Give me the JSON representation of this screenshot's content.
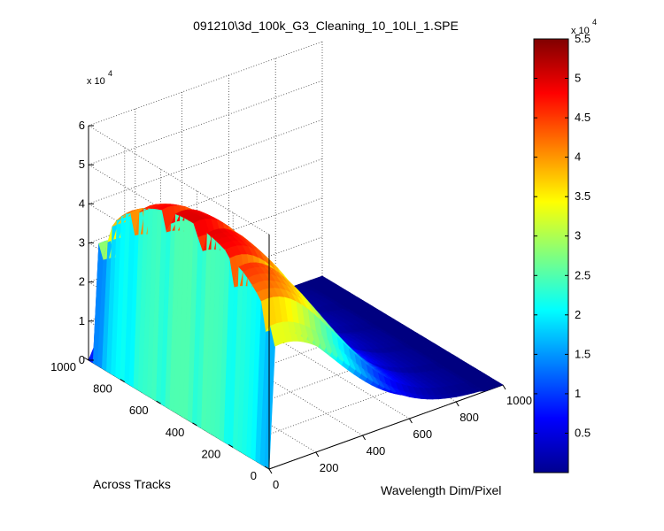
{
  "chart_data": {
    "type": "surface3d",
    "title": "091210\\3d_100k_G3_Cleaning_10_10LI_1.SPE",
    "xlabel": "Wavelength Dim/Pixel",
    "ylabel": "Across Tracks",
    "zlabel": "",
    "xlim": [
      0,
      1000
    ],
    "ylim": [
      0,
      1000
    ],
    "zlim": [
      0,
      60000
    ],
    "z_multiplier_label": "x 10",
    "z_multiplier_exp": "4",
    "x_ticks": [
      "0",
      "200",
      "400",
      "600",
      "800",
      "1000"
    ],
    "x_tick_values": [
      0,
      200,
      400,
      600,
      800,
      1000
    ],
    "y_ticks": [
      "0",
      "200",
      "400",
      "600",
      "800",
      "1000"
    ],
    "y_tick_values": [
      0,
      200,
      400,
      600,
      800,
      1000
    ],
    "z_ticks": [
      "0",
      "1",
      "2",
      "3",
      "4",
      "5",
      "6"
    ],
    "z_tick_values": [
      0,
      10000,
      20000,
      30000,
      40000,
      50000,
      60000
    ],
    "grid": true,
    "peak_value": 50000,
    "colormap": "jet",
    "colorbar": {
      "range": [
        0,
        55000
      ],
      "ticks": [
        "0.5",
        "1",
        "1.5",
        "2",
        "2.5",
        "3",
        "3.5",
        "4",
        "4.5",
        "5",
        "5.5"
      ],
      "tick_values": [
        5000,
        10000,
        15000,
        20000,
        25000,
        30000,
        35000,
        40000,
        45000,
        50000,
        55000
      ],
      "multiplier_label": "x 10",
      "multiplier_exp": "4",
      "position": "right"
    }
  }
}
